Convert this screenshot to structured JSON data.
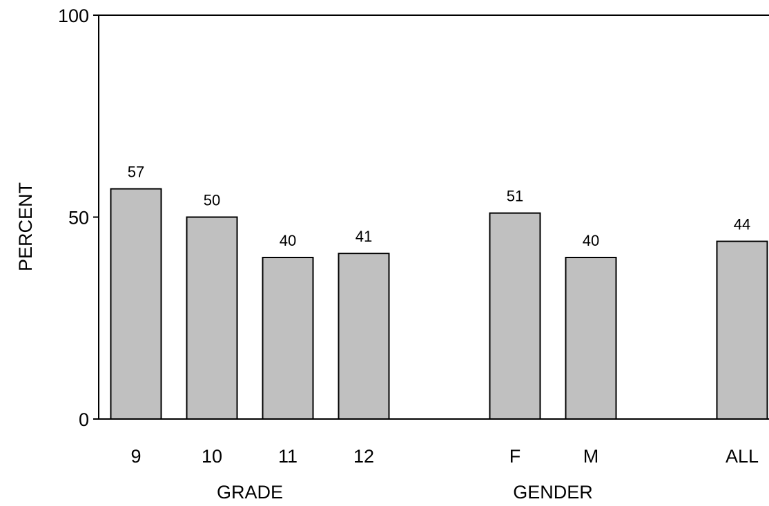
{
  "chart_data": {
    "type": "bar",
    "ylabel": "PERCENT",
    "ylim": [
      0,
      100
    ],
    "yticks": [
      0,
      50,
      100
    ],
    "categories": [
      "9",
      "10",
      "11",
      "12",
      "F",
      "M",
      "ALL"
    ],
    "values": [
      57,
      50,
      40,
      41,
      51,
      40,
      44
    ],
    "data_labels": [
      "57",
      "50",
      "40",
      "41",
      "51",
      "40",
      "44"
    ],
    "groups": [
      {
        "label": "GRADE",
        "categories": [
          "9",
          "10",
          "11",
          "12"
        ]
      },
      {
        "label": "GENDER",
        "categories": [
          "F",
          "M"
        ]
      }
    ],
    "grid": false,
    "legend": "none",
    "colors": {
      "bar_fill": "#c0c0c0",
      "bar_stroke": "#000000",
      "axis": "#000000"
    }
  }
}
